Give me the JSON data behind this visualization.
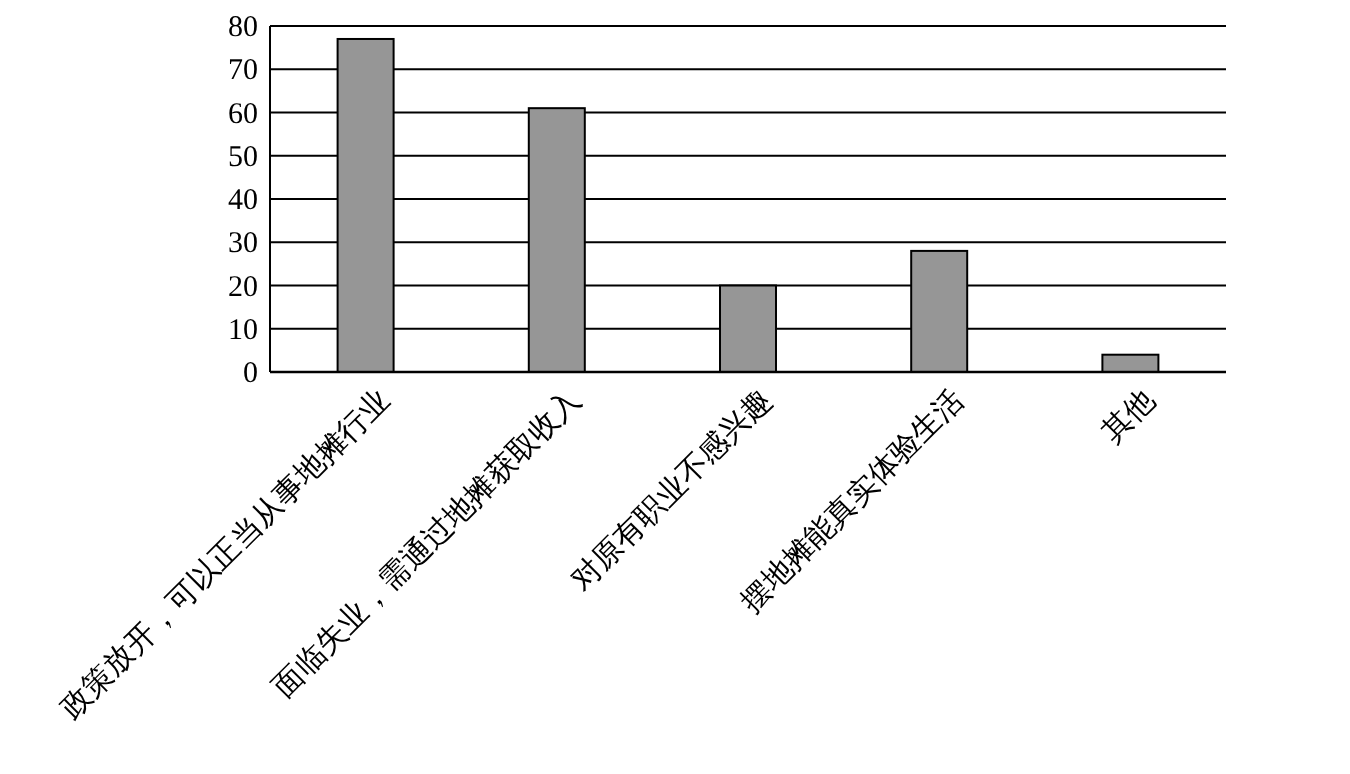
{
  "chart_data": {
    "type": "bar",
    "categories": [
      "政策放开，可以正当从事地摊行业",
      "面临失业，需通过地摊获取收入",
      "对原有职业不感兴趣",
      "摆地摊能真实体验生活",
      "其他"
    ],
    "values": [
      77,
      61,
      20,
      28,
      4
    ],
    "color": "#969696",
    "ylim": [
      0,
      80
    ],
    "yticks": [
      0,
      10,
      20,
      30,
      40,
      50,
      60,
      70,
      80
    ],
    "grid": "y"
  }
}
